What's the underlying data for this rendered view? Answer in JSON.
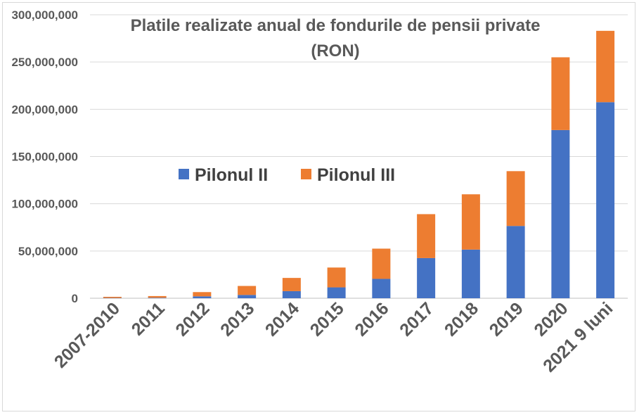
{
  "chart_data": {
    "type": "bar",
    "stacked": true,
    "title_lines": [
      "Platile realizate anual de fondurile de pensii private",
      "(RON)"
    ],
    "categories": [
      "2007-2010",
      "2011",
      "2012",
      "2013",
      "2014",
      "2015",
      "2016",
      "2017",
      "2018",
      "2019",
      "2020",
      "2021 9 luni"
    ],
    "series": [
      {
        "name": "Pilonul II",
        "color": "#4472C4",
        "values": [
          300000,
          500000,
          2000000,
          3500000,
          7500000,
          11500000,
          20500000,
          42500000,
          51500000,
          76500000,
          178000000,
          207500000
        ]
      },
      {
        "name": "Pilonul III",
        "color": "#ED7D31",
        "values": [
          1200000,
          1800000,
          4500000,
          9500000,
          14000000,
          21000000,
          32000000,
          46500000,
          58500000,
          58000000,
          77000000,
          75500000
        ]
      }
    ],
    "ylim": [
      0,
      300000000
    ],
    "y_ticks": [
      "0",
      "50,000,000",
      "100,000,000",
      "150,000,000",
      "200,000,000",
      "250,000,000",
      "300,000,000"
    ],
    "grid": true,
    "legend_position": "center-left",
    "xlabel": "",
    "ylabel": ""
  }
}
